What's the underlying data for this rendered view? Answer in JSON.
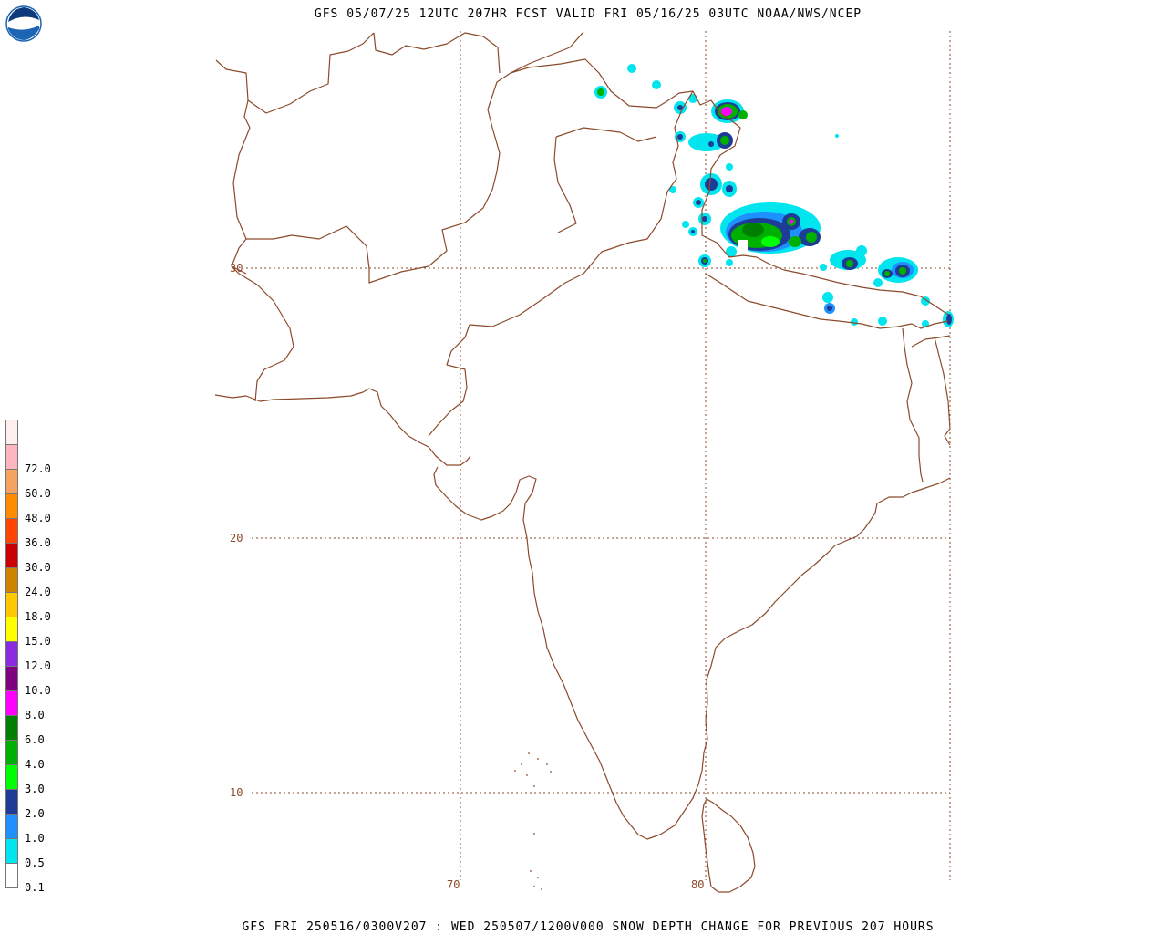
{
  "header": {
    "title": "GFS 05/07/25 12UTC 207HR FCST VALID FRI 05/16/25 03UTC NOAA/NWS/NCEP"
  },
  "footer": {
    "caption": "GFS FRI 250516/0300V207 : WED 250507/1200V000 SNOW DEPTH CHANGE FOR PREVIOUS 207 HOURS"
  },
  "logo": {
    "text": "NOAA",
    "icon": "noaa-logo-icon"
  },
  "gridlines": {
    "latitudes": [
      {
        "value": 30,
        "label": "30"
      },
      {
        "value": 20,
        "label": "20"
      },
      {
        "value": 10,
        "label": "10"
      }
    ],
    "longitudes": [
      {
        "value": 70,
        "label": "70"
      },
      {
        "value": 80,
        "label": "80"
      }
    ]
  },
  "legend": {
    "items": [
      {
        "label": "",
        "color": "#ffeeee"
      },
      {
        "label": "72.0",
        "color": "#ffb6c1"
      },
      {
        "label": "60.0",
        "color": "#f4a460"
      },
      {
        "label": "48.0",
        "color": "#ff8c00"
      },
      {
        "label": "36.0",
        "color": "#ff4500"
      },
      {
        "label": "30.0",
        "color": "#cc0000"
      },
      {
        "label": "24.0",
        "color": "#cd8500"
      },
      {
        "label": "18.0",
        "color": "#ffc800"
      },
      {
        "label": "15.0",
        "color": "#ffff00"
      },
      {
        "label": "12.0",
        "color": "#8a2be2"
      },
      {
        "label": "10.0",
        "color": "#800080"
      },
      {
        "label": "8.0",
        "color": "#ff00ff"
      },
      {
        "label": "6.0",
        "color": "#008000"
      },
      {
        "label": "4.0",
        "color": "#00b000"
      },
      {
        "label": "3.0",
        "color": "#00ff00"
      },
      {
        "label": "2.0",
        "color": "#1e3c96"
      },
      {
        "label": "1.0",
        "color": "#1e90ff"
      },
      {
        "label": "0.5",
        "color": "#00e5ee"
      },
      {
        "label": "0.1",
        "color": "#ffffff"
      }
    ]
  },
  "colors": {
    "coastline": "#8b4a2b",
    "gridline": "#8b4a2b"
  }
}
